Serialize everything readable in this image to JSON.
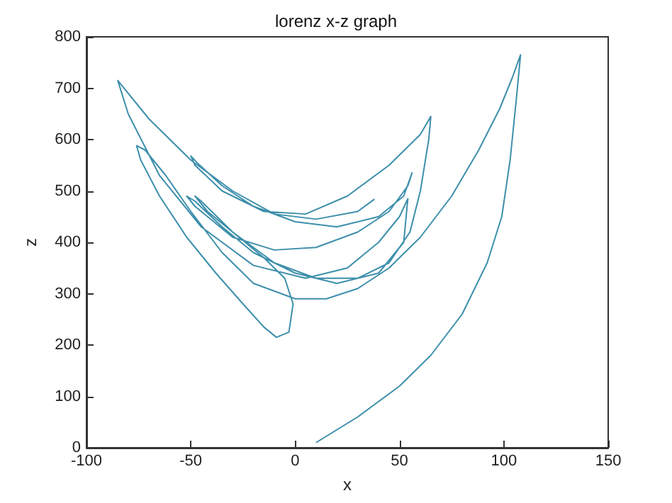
{
  "chart_data": {
    "type": "line",
    "title": "lorenz x-z graph",
    "xlabel": "x",
    "ylabel": "z",
    "xlim": [
      -100,
      150
    ],
    "xticks": [
      -100,
      -50,
      0,
      50,
      100,
      150
    ],
    "ylim": [
      0,
      800
    ],
    "yticks": [
      0,
      100,
      200,
      300,
      400,
      500,
      600,
      700,
      800
    ],
    "grid": false,
    "marker": "none",
    "line_style": "solid",
    "series": [
      {
        "color": "#3d8fab",
        "x": [
          10,
          30,
          50,
          65,
          80,
          92,
          99,
          103,
          106,
          108,
          104,
          98,
          88,
          75,
          60,
          45,
          30,
          15,
          0,
          -20,
          -35,
          -50,
          -62,
          -72,
          -76,
          -74,
          -65,
          -52,
          -38,
          -25,
          -15,
          -9,
          -3,
          -1,
          -5,
          -15,
          -30,
          -42,
          -48,
          -45,
          -30,
          -10,
          10,
          30,
          45,
          55,
          60,
          64,
          65,
          60,
          45,
          25,
          5,
          -15,
          -35,
          -48,
          -50,
          -47,
          -35,
          -20,
          0,
          20,
          40,
          52,
          56,
          54,
          45,
          30,
          10,
          -10,
          -30,
          -48,
          -52,
          -48,
          -35,
          -20,
          0,
          20,
          40,
          52,
          54,
          50,
          40,
          25,
          5,
          -20,
          -45,
          -65,
          -80,
          -85,
          -70,
          -50,
          -30,
          -10,
          10,
          30,
          38
        ],
        "values": [
          10,
          60,
          120,
          180,
          260,
          360,
          450,
          560,
          680,
          765,
          720,
          660,
          580,
          490,
          410,
          350,
          310,
          290,
          290,
          320,
          380,
          460,
          530,
          580,
          588,
          560,
          490,
          410,
          340,
          280,
          235,
          215,
          225,
          280,
          330,
          370,
          420,
          460,
          490,
          480,
          420,
          360,
          330,
          330,
          360,
          420,
          500,
          600,
          645,
          610,
          550,
          490,
          455,
          460,
          500,
          550,
          568,
          555,
          510,
          470,
          440,
          430,
          450,
          490,
          535,
          510,
          460,
          420,
          390,
          385,
          410,
          470,
          490,
          480,
          430,
          380,
          340,
          320,
          340,
          400,
          485,
          450,
          400,
          350,
          330,
          355,
          430,
          530,
          650,
          715,
          640,
          560,
          500,
          455,
          445,
          460,
          484
        ]
      }
    ]
  }
}
